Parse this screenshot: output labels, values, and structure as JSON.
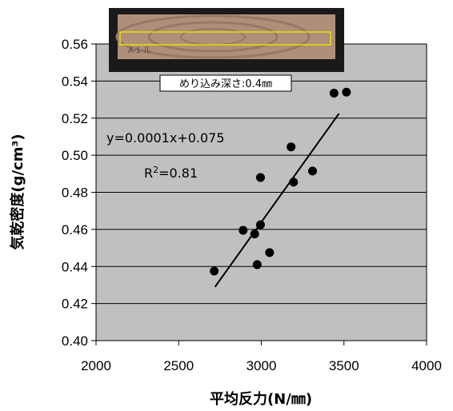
{
  "chart_data": {
    "type": "scatter",
    "xlabel": "平均反力(N/㎜)",
    "ylabel": "気乾密度(g/cm³)",
    "xlim": [
      2000,
      4000
    ],
    "ylim": [
      0.4,
      0.56
    ],
    "xticks": [
      2000,
      2500,
      3000,
      3500,
      4000
    ],
    "yticks": [
      0.4,
      0.42,
      0.44,
      0.46,
      0.48,
      0.5,
      0.52,
      0.54,
      0.56
    ],
    "x_tick_labels": [
      "2000",
      "2500",
      "3000",
      "3500",
      "4000"
    ],
    "y_tick_labels": [
      "0.40",
      "0.42",
      "0.44",
      "0.46",
      "0.48",
      "0.50",
      "0.52",
      "0.54",
      "0.56"
    ],
    "grid": "horizontal",
    "plot_background": "#c0c0c0",
    "points": [
      {
        "x": 2715,
        "y": 0.4375
      },
      {
        "x": 2890,
        "y": 0.4595
      },
      {
        "x": 2960,
        "y": 0.4575
      },
      {
        "x": 2975,
        "y": 0.441
      },
      {
        "x": 2995,
        "y": 0.4625
      },
      {
        "x": 2995,
        "y": 0.488
      },
      {
        "x": 3050,
        "y": 0.4475
      },
      {
        "x": 3180,
        "y": 0.5045
      },
      {
        "x": 3195,
        "y": 0.4855
      },
      {
        "x": 3310,
        "y": 0.4915
      },
      {
        "x": 3440,
        "y": 0.5335
      },
      {
        "x": 3515,
        "y": 0.534
      }
    ],
    "trendline": {
      "x": [
        2720,
        3470
      ],
      "y": [
        0.429,
        0.5225
      ]
    },
    "annotations": {
      "equation": "y=0.0001x+0.075",
      "r2_prefix": "R",
      "r2_sup": "2",
      "r2_suffix": "=0.81",
      "sample_label": "めり込み深さ:0.4㎜",
      "sample_photo_caption": "A-1-ル"
    }
  }
}
